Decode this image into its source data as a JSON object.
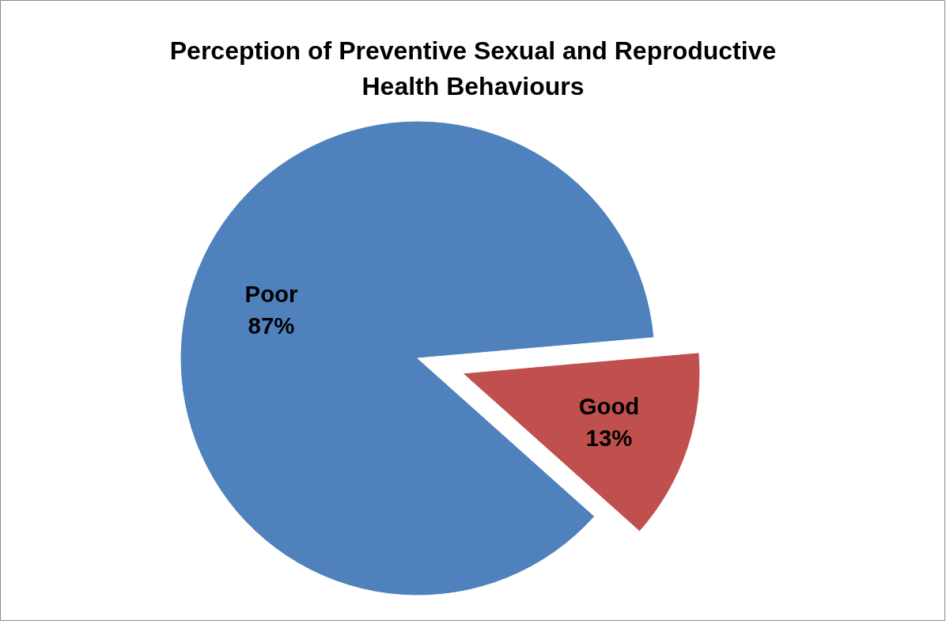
{
  "chart_data": {
    "type": "pie",
    "title": "Perception of Preventive Sexual and Reproductive Health Behaviours",
    "categories": [
      "Poor",
      "Good"
    ],
    "values": [
      87,
      13
    ],
    "colors": [
      "#4f81bd",
      "#c0504d"
    ],
    "value_labels": [
      "87%",
      "13%"
    ]
  }
}
